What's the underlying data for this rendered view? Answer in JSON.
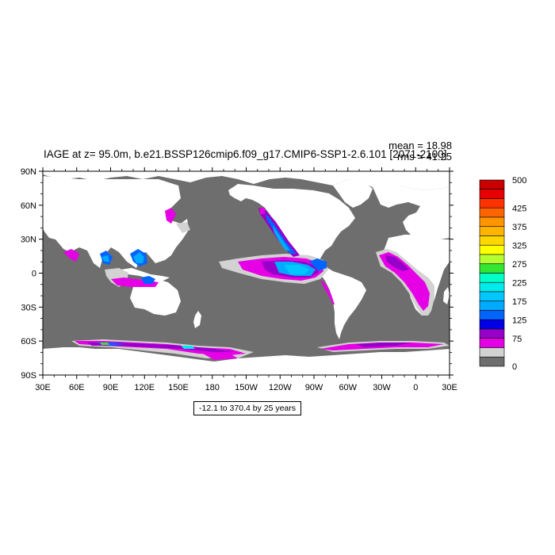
{
  "title": "IAGE at z=  95.0m, b.e21.BSSP126cmip6.f09_g17.CMIP6-SSP1-2.6.101 [2071-2100]",
  "stats": {
    "mean": "mean = 18.98",
    "rms": "rms = 41.25"
  },
  "range_note": "-12.1 to 370.4 by 25 years",
  "axes": {
    "lat_labels": [
      "90N",
      "60N",
      "30N",
      "0",
      "30S",
      "60S",
      "90S"
    ],
    "lon_labels": [
      "30E",
      "60E",
      "90E",
      "120E",
      "150E",
      "180",
      "150W",
      "120W",
      "90W",
      "60W",
      "30W",
      "0",
      "30E"
    ]
  },
  "colorbar": {
    "labels": [
      "500",
      "425",
      "375",
      "325",
      "275",
      "225",
      "175",
      "125",
      "75",
      "0"
    ],
    "colors": [
      "#c80000",
      "#e60000",
      "#ff3200",
      "#ff6400",
      "#ff9600",
      "#ffb400",
      "#ffd700",
      "#ffff00",
      "#b4ff32",
      "#32e632",
      "#00ffc8",
      "#00ebeb",
      "#00c8ff",
      "#00aaff",
      "#0064ff",
      "#0000e6",
      "#9600c8",
      "#e600e6",
      "#d2d2d2",
      "#6e6e6e"
    ]
  },
  "colors": {
    "land": "#ffffff",
    "ocean_zero": "#6e6e6e",
    "low_band": "#d2d2d2"
  }
}
